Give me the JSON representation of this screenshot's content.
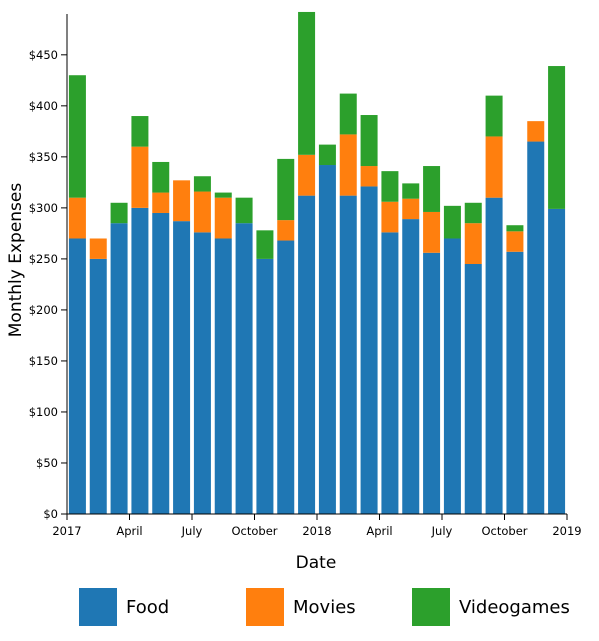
{
  "chart_data": {
    "type": "bar",
    "stacked": true,
    "xlabel": "Date",
    "ylabel": "Monthly Expenses",
    "ylim": [
      0,
      490
    ],
    "y_ticks": [
      0,
      50,
      100,
      150,
      200,
      250,
      300,
      350,
      400,
      450
    ],
    "y_tick_labels": [
      "$0",
      "$50",
      "$100",
      "$150",
      "$200",
      "$250",
      "$300",
      "$350",
      "$400",
      "$450"
    ],
    "x_tick_labels": [
      "2017",
      "April",
      "July",
      "October",
      "2018",
      "April",
      "July",
      "October",
      "2019"
    ],
    "x": [
      "2017-01",
      "2017-02",
      "2017-03",
      "2017-04",
      "2017-05",
      "2017-06",
      "2017-07",
      "2017-08",
      "2017-09",
      "2017-10",
      "2017-11",
      "2017-12",
      "2018-01",
      "2018-02",
      "2018-03",
      "2018-04",
      "2018-05",
      "2018-06",
      "2018-07",
      "2018-08",
      "2018-09",
      "2018-10",
      "2018-11",
      "2018-12"
    ],
    "series": [
      {
        "name": "Food",
        "color": "#1f77b4",
        "values": [
          270,
          250,
          285,
          300,
          295,
          287,
          276,
          270,
          285,
          250,
          268,
          312,
          342,
          312,
          321,
          276,
          289,
          256,
          270,
          245,
          310,
          257,
          365,
          299
        ]
      },
      {
        "name": "Movies",
        "color": "#ff7f0e",
        "values": [
          40,
          20,
          0,
          60,
          20,
          40,
          40,
          40,
          0,
          0,
          20,
          40,
          0,
          60,
          20,
          30,
          20,
          40,
          0,
          40,
          60,
          20,
          20,
          0
        ]
      },
      {
        "name": "Videogames",
        "color": "#2ca02c",
        "values": [
          120,
          0,
          20,
          30,
          30,
          0,
          15,
          5,
          25,
          28,
          60,
          140,
          20,
          40,
          50,
          30,
          15,
          45,
          32,
          20,
          40,
          6,
          0,
          140
        ]
      }
    ],
    "legend_position": "bottom",
    "grid": false
  },
  "legend": {
    "items": [
      {
        "label": "Food",
        "color": "#1f77b4"
      },
      {
        "label": "Movies",
        "color": "#ff7f0e"
      },
      {
        "label": "Videogames",
        "color": "#2ca02c"
      }
    ]
  }
}
